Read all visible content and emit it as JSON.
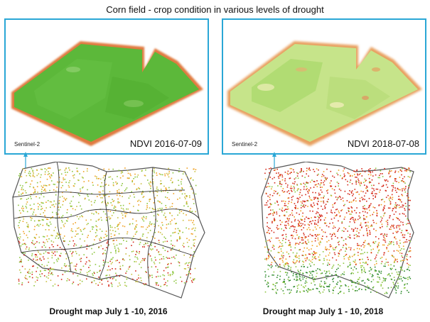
{
  "title": "Corn field - crop condition in various levels of drought",
  "panels": [
    {
      "sensor": "Sentinel-2",
      "ndvi_label": "NDVI 2016-07-09",
      "dominant_color": "#5cb83a"
    },
    {
      "sensor": "Sentinel-2",
      "ndvi_label": "NDVI 2018-07-08",
      "dominant_color": "#c6e48a"
    }
  ],
  "maps": [
    {
      "caption": "Drought map July 1 -10, 2016"
    },
    {
      "caption": "Drought map  July 1 - 10, 2018"
    }
  ],
  "colors": {
    "frame": "#2aa7d6",
    "severe": "#d42a1a",
    "moderate": "#f0a020",
    "mild": "#8cc63e",
    "none": "#2e8b2e"
  }
}
